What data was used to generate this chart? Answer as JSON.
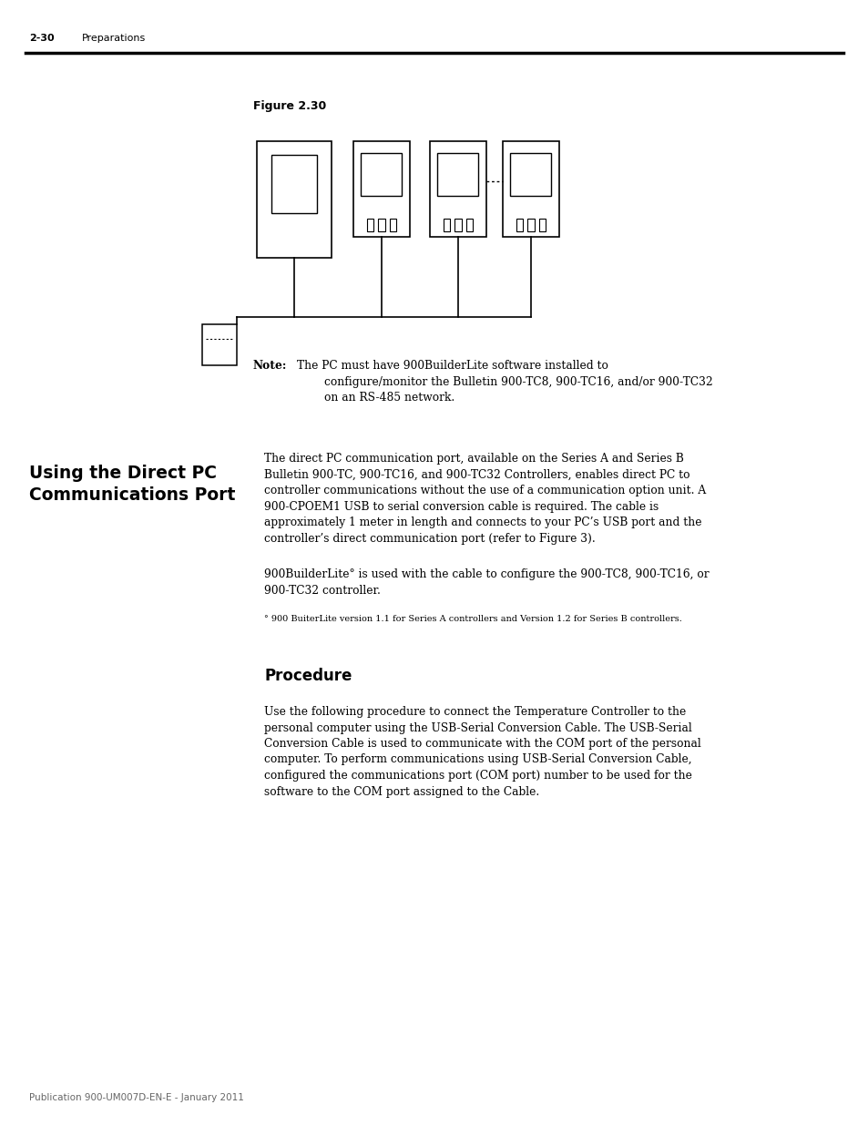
{
  "page_header_number": "2-30",
  "page_header_text": "Preparations",
  "figure_label": "Figure 2.30",
  "note_bold": "Note:",
  "note_line1": "The PC must have 900BuilderLite software installed to",
  "note_line2": "configure/monitor the Bulletin 900-TC8, 900-TC16, and/or 900-TC32",
  "note_line3": "on an RS-485 network.",
  "section_title": "Using the Direct PC\nCommunications Port",
  "body_line1": "The direct PC communication port, available on the Series A and Series B",
  "body_line2": "Bulletin 900-TC, 900-TC16, and 900-TC32 Controllers, enables direct PC to",
  "body_line3": "controller communications without the use of a communication option unit. A",
  "body_line4": "900-CPOEM1 USB to serial conversion cable is required. The cable is",
  "body_line5": "approximately 1 meter in length and connects to your PC’s USB port and the",
  "body_line6": "controller’s direct communication port (refer to Figure 3).",
  "body2_line1": "900BuilderLite° is used with the cable to configure the 900-TC8, 900-TC16, or",
  "body2_line2": "900-TC32 controller.",
  "footnote": "° 900 BuiterLite version 1.1 for Series A controllers and Version 1.2 for Series B controllers.",
  "procedure_title": "Procedure",
  "proc_line1": "Use the following procedure to connect the Temperature Controller to the",
  "proc_line2": "personal computer using the USB-Serial Conversion Cable. The USB-Serial",
  "proc_line3": "Conversion Cable is used to communicate with the COM port of the personal",
  "proc_line4": "computer. To perform communications using USB-Serial Conversion Cable,",
  "proc_line5": "configured the communications port (COM port) number to be used for the",
  "proc_line6": "software to the COM port assigned to the Cable.",
  "footer_text": "Publication 900-UM007D-EN-E - January 2011",
  "bg_color": "#ffffff",
  "text_color": "#000000"
}
